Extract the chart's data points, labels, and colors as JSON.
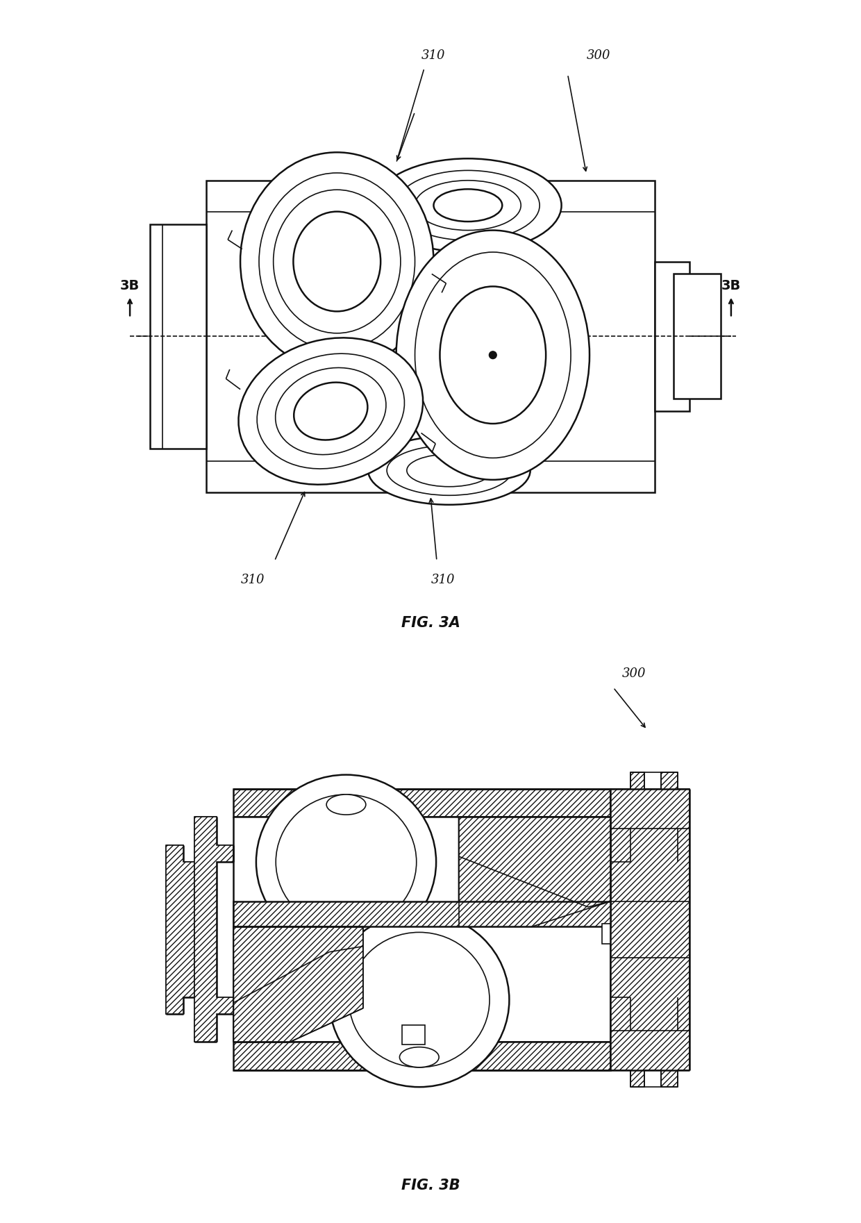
{
  "fig_size": [
    12.4,
    17.61
  ],
  "dpi": 100,
  "bg_color": "#ffffff",
  "line_color": "#111111",
  "label_310_top": "310",
  "label_300_3a": "300",
  "label_310_bl": "310",
  "label_310_br": "310",
  "label_3b_left": "3B",
  "label_3b_right": "3B",
  "fig3a_caption": "FIG. 3A",
  "label_300_3b": "300",
  "fig3b_caption": "FIG. 3B",
  "font_size_labels": 13,
  "font_size_captions": 15,
  "font_size_3b": 14
}
